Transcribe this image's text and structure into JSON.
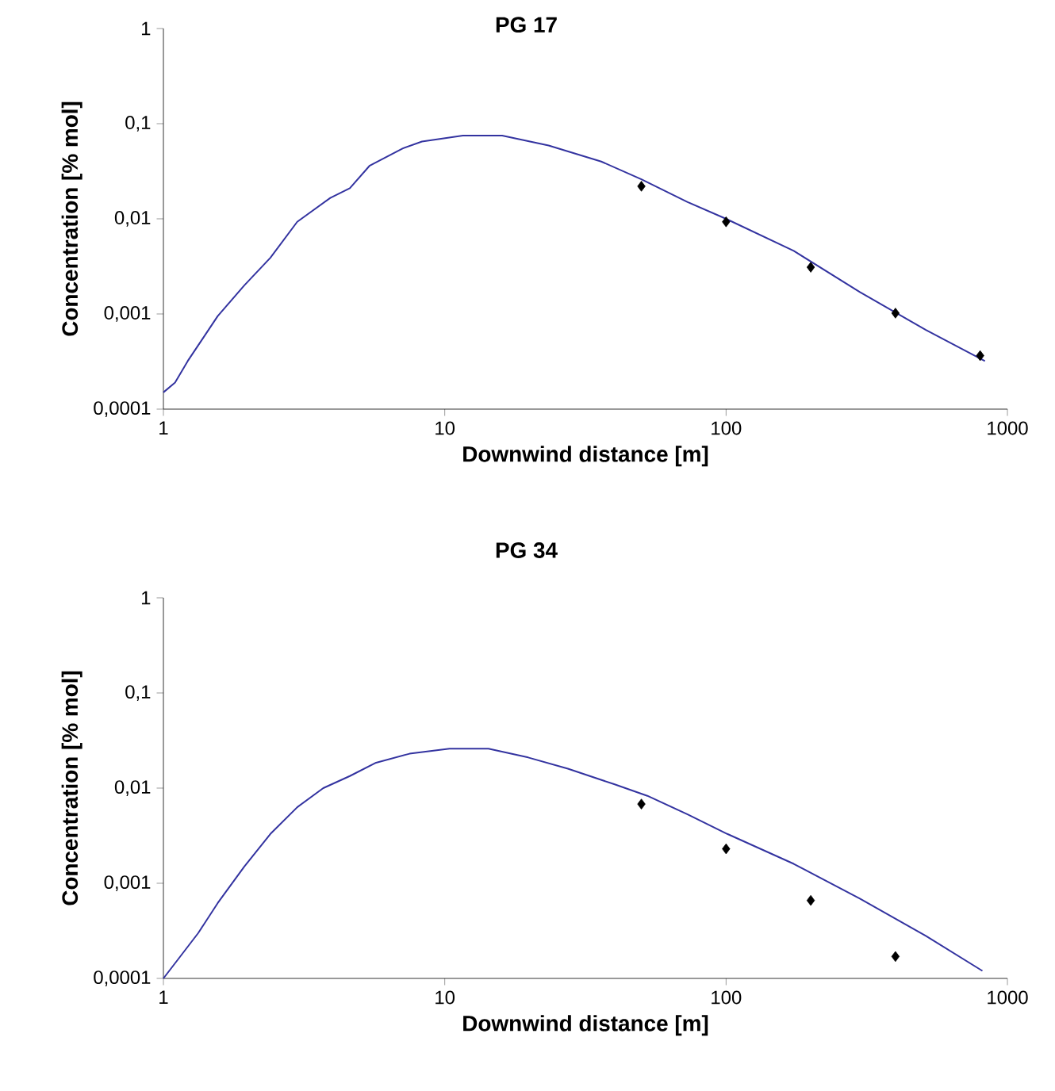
{
  "chart_data": [
    {
      "type": "line",
      "title": "PG 17",
      "xlabel": "Downwind distance [m]",
      "ylabel": "Concentration [% mol]",
      "log": "xy",
      "xlim": [
        1,
        1000
      ],
      "xticks": [
        1,
        10,
        100,
        1000
      ],
      "ylim": [
        0.0001,
        1
      ],
      "yticks": [
        {
          "value": 0.0001,
          "label": "0,0001"
        },
        {
          "value": 0.001,
          "label": "0,001"
        },
        {
          "value": 0.01,
          "label": "0,01"
        },
        {
          "value": 0.1,
          "label": "0,1"
        },
        1
      ],
      "series": [
        {
          "color": "#3333a0",
          "marker": "none",
          "line_style": "solid",
          "x": [
            1,
            1.1,
            1.22,
            1.56,
            1.94,
            2.4,
            2.99,
            3.92,
            4.6,
            5.4,
            7.1,
            8.3,
            11.6,
            16,
            23.4,
            36,
            50,
            73,
            100,
            174,
            299,
            513,
            832
          ],
          "values": [
            0.00015,
            0.00019,
            0.00032,
            0.00095,
            0.002,
            0.0039,
            0.0093,
            0.0166,
            0.021,
            0.036,
            0.055,
            0.065,
            0.075,
            0.075,
            0.059,
            0.04,
            0.026,
            0.015,
            0.01,
            0.0046,
            0.0017,
            0.00068,
            0.00032
          ]
        },
        {
          "type": "scatter",
          "color": "#000000",
          "marker": "diamond",
          "x": [
            50,
            100,
            200,
            400,
            800
          ],
          "values": [
            0.022,
            0.0093,
            0.0031,
            0.00102,
            0.000365
          ]
        }
      ]
    },
    {
      "type": "line",
      "title": "PG 34",
      "xlabel": "Downwind distance [m]",
      "ylabel": "Concentration [% mol]",
      "log": "xy",
      "xlim": [
        1,
        1000
      ],
      "xticks": [
        1,
        10,
        100,
        1000
      ],
      "ylim": [
        0.0001,
        1
      ],
      "yticks": [
        {
          "value": 0.0001,
          "label": "0,0001"
        },
        {
          "value": 0.001,
          "label": "0,001"
        },
        {
          "value": 0.01,
          "label": "0,01"
        },
        {
          "value": 0.1,
          "label": "0,1"
        },
        1
      ],
      "series": [
        {
          "color": "#3333a0",
          "marker": "none",
          "line_style": "solid",
          "x": [
            1,
            1.13,
            1.33,
            1.56,
            1.94,
            2.4,
            2.99,
            3.7,
            4.6,
            5.7,
            7.5,
            10.4,
            14.3,
            19.8,
            27.4,
            40,
            52.5,
            73,
            101,
            174,
            299,
            513,
            815
          ],
          "values": [
            0.0001,
            0.00016,
            0.0003,
            0.00062,
            0.0015,
            0.0033,
            0.0063,
            0.01,
            0.0134,
            0.0185,
            0.023,
            0.026,
            0.026,
            0.021,
            0.016,
            0.011,
            0.0083,
            0.0053,
            0.0033,
            0.0016,
            0.00069,
            0.00028,
            0.00012
          ]
        },
        {
          "type": "scatter",
          "color": "#000000",
          "marker": "diamond",
          "x": [
            50,
            100,
            200,
            400
          ],
          "values": [
            0.0068,
            0.0023,
            0.00066,
            0.00017
          ]
        }
      ]
    }
  ]
}
